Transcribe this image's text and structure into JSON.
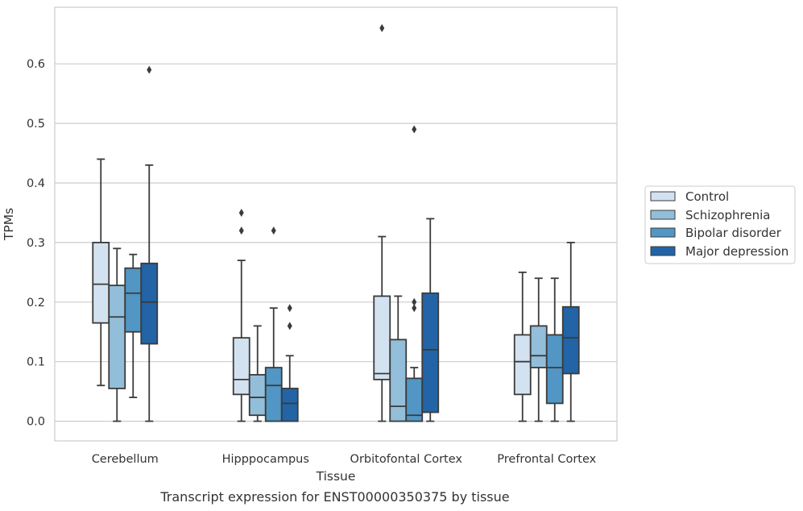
{
  "caption": "Transcript expression for ENST00000350375 by tissue",
  "colors": {
    "box_stroke": "#3b3b3b",
    "grid": "#cccccc",
    "frame": "#cccccc",
    "series": [
      "#d3e2f0",
      "#93bed9",
      "#5196c4",
      "#2264a6"
    ]
  },
  "chart_data": {
    "type": "box",
    "xlabel": "Tissue",
    "ylabel": "TPMs",
    "ylim": [
      -0.033,
      0.695
    ],
    "yticks": [
      0.0,
      0.1,
      0.2,
      0.3,
      0.4,
      0.5,
      0.6
    ],
    "ytick_labels": [
      "0.0",
      "0.1",
      "0.2",
      "0.3",
      "0.4",
      "0.5",
      "0.6"
    ],
    "categories": [
      "Cerebellum",
      "Hipppocampus",
      "Orbitofontal Cortex",
      "Prefrontal Cortex"
    ],
    "grid": "horizontal",
    "legend_position": "right, vertically centered outside the plot",
    "series": [
      {
        "name": "Control",
        "boxes": [
          {
            "whislo": 0.06,
            "q1": 0.165,
            "med": 0.23,
            "q3": 0.3,
            "whishi": 0.44,
            "fliers": []
          },
          {
            "whislo": 0.0,
            "q1": 0.045,
            "med": 0.07,
            "q3": 0.14,
            "whishi": 0.27,
            "fliers": [
              0.35,
              0.32
            ]
          },
          {
            "whislo": 0.0,
            "q1": 0.07,
            "med": 0.08,
            "q3": 0.21,
            "whishi": 0.31,
            "fliers": [
              0.66
            ]
          },
          {
            "whislo": 0.0,
            "q1": 0.045,
            "med": 0.1,
            "q3": 0.145,
            "whishi": 0.25,
            "fliers": []
          }
        ]
      },
      {
        "name": "Schizophrenia",
        "boxes": [
          {
            "whislo": 0.0,
            "q1": 0.055,
            "med": 0.175,
            "q3": 0.228,
            "whishi": 0.29,
            "fliers": []
          },
          {
            "whislo": 0.0,
            "q1": 0.01,
            "med": 0.04,
            "q3": 0.078,
            "whishi": 0.16,
            "fliers": []
          },
          {
            "whislo": 0.0,
            "q1": 0.0,
            "med": 0.025,
            "q3": 0.137,
            "whishi": 0.21,
            "fliers": []
          },
          {
            "whislo": 0.0,
            "q1": 0.09,
            "med": 0.11,
            "q3": 0.16,
            "whishi": 0.24,
            "fliers": []
          }
        ]
      },
      {
        "name": "Bipolar disorder",
        "boxes": [
          {
            "whislo": 0.04,
            "q1": 0.15,
            "med": 0.215,
            "q3": 0.257,
            "whishi": 0.28,
            "fliers": []
          },
          {
            "whislo": 0.0,
            "q1": 0.0,
            "med": 0.06,
            "q3": 0.09,
            "whishi": 0.19,
            "fliers": [
              0.32
            ]
          },
          {
            "whislo": 0.0,
            "q1": 0.0,
            "med": 0.01,
            "q3": 0.072,
            "whishi": 0.09,
            "fliers": [
              0.49,
              0.2,
              0.19
            ]
          },
          {
            "whislo": 0.0,
            "q1": 0.03,
            "med": 0.09,
            "q3": 0.145,
            "whishi": 0.24,
            "fliers": []
          }
        ]
      },
      {
        "name": "Major depression",
        "boxes": [
          {
            "whislo": 0.0,
            "q1": 0.13,
            "med": 0.2,
            "q3": 0.265,
            "whishi": 0.43,
            "fliers": [
              0.59
            ]
          },
          {
            "whislo": 0.0,
            "q1": 0.0,
            "med": 0.03,
            "q3": 0.055,
            "whishi": 0.11,
            "fliers": [
              0.19,
              0.16
            ]
          },
          {
            "whislo": 0.0,
            "q1": 0.015,
            "med": 0.12,
            "q3": 0.215,
            "whishi": 0.34,
            "fliers": []
          },
          {
            "whislo": 0.0,
            "q1": 0.08,
            "med": 0.14,
            "q3": 0.192,
            "whishi": 0.3,
            "fliers": []
          }
        ]
      }
    ]
  }
}
